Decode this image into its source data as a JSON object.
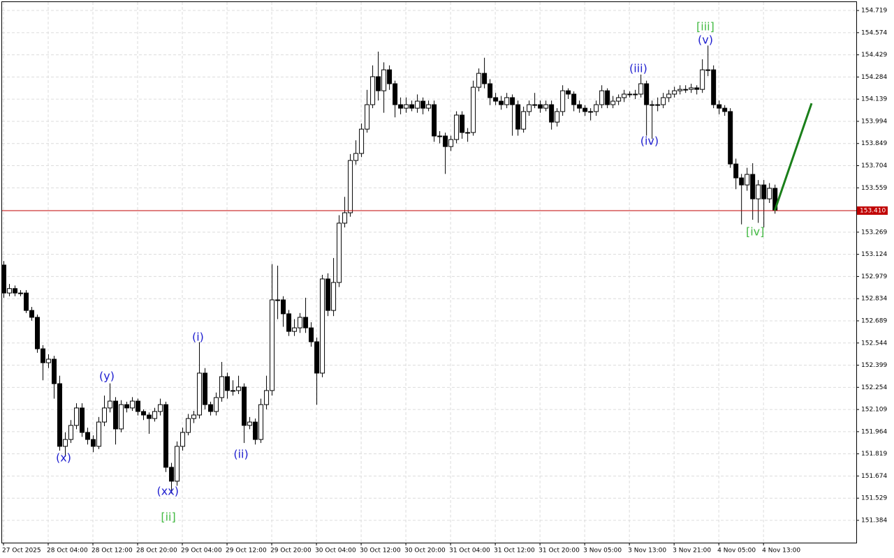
{
  "chart_data": {
    "type": "candlestick",
    "bull_color": "#ffffff",
    "bear_color": "#000000",
    "outline_color": "#000000",
    "ylim": [
      151.238,
      154.774
    ],
    "yticks": [
      154.719,
      154.574,
      154.429,
      154.284,
      154.139,
      153.994,
      153.849,
      153.704,
      153.559,
      153.269,
      153.124,
      152.979,
      152.834,
      152.689,
      152.544,
      152.399,
      152.254,
      152.109,
      151.964,
      151.819,
      151.674,
      151.529,
      151.384
    ],
    "xlim": [
      -0.25,
      152.6
    ],
    "xticks": [
      {
        "value": 0,
        "label": "27 Oct 2025"
      },
      {
        "value": 8,
        "label": "28 Oct 04:00"
      },
      {
        "value": 16,
        "label": "28 Oct 12:00"
      },
      {
        "value": 24,
        "label": "28 Oct 20:00"
      },
      {
        "value": 32,
        "label": "29 Oct 04:00"
      },
      {
        "value": 40,
        "label": "29 Oct 12:00"
      },
      {
        "value": 48,
        "label": "29 Oct 20:00"
      },
      {
        "value": 56,
        "label": "30 Oct 04:00"
      },
      {
        "value": 64,
        "label": "30 Oct 12:00"
      },
      {
        "value": 72,
        "label": "30 Oct 20:00"
      },
      {
        "value": 80,
        "label": "31 Oct 04:00"
      },
      {
        "value": 88,
        "label": "31 Oct 12:00"
      },
      {
        "value": 96,
        "label": "31 Oct 20:00"
      },
      {
        "value": 104,
        "label": "3 Nov 05:00"
      },
      {
        "value": 112,
        "label": "3 Nov 13:00"
      },
      {
        "value": 120,
        "label": "3 Nov 21:00"
      },
      {
        "value": 128,
        "label": "4 Nov 05:00"
      },
      {
        "value": 136,
        "label": "4 Nov 13:00"
      }
    ],
    "grid": true,
    "price_line": {
      "value": 153.41,
      "label": "153.410",
      "color": "#c00000"
    },
    "forecast": {
      "x": [
        138,
        144.6
      ],
      "y": [
        153.41,
        154.112
      ],
      "color": "#1a7f1a"
    },
    "annotations": [
      {
        "text": "(x)",
        "x": 10.75,
        "y": 151.79,
        "color": "#2020d0"
      },
      {
        "text": "(y)",
        "x": 18.5,
        "y": 152.324,
        "color": "#2020d0"
      },
      {
        "text": "(xx)",
        "x": 29.4,
        "y": 151.571,
        "color": "#2020d0"
      },
      {
        "text": "[ii]",
        "x": 29.5,
        "y": 151.402,
        "color": "#44bb44"
      },
      {
        "text": "(i)",
        "x": 34.8,
        "y": 152.579,
        "color": "#2020d0"
      },
      {
        "text": "(ii)",
        "x": 42.5,
        "y": 151.813,
        "color": "#2020d0"
      },
      {
        "text": "(iii)",
        "x": 113.6,
        "y": 154.336,
        "color": "#2020d0"
      },
      {
        "text": "(iv)",
        "x": 115.6,
        "y": 153.861,
        "color": "#2020d0"
      },
      {
        "text": "(v)",
        "x": 125.6,
        "y": 154.523,
        "color": "#2020d0"
      },
      {
        "text": "[iii]",
        "x": 125.6,
        "y": 154.61,
        "color": "#44bb44"
      },
      {
        "text": "[iv]",
        "x": 134.5,
        "y": 153.268,
        "color": "#44bb44"
      }
    ],
    "candles": [
      [
        153.054,
        153.08,
        152.84,
        152.871
      ],
      [
        152.871,
        152.93,
        152.85,
        152.9
      ],
      [
        152.9,
        152.92,
        152.85,
        152.871
      ],
      [
        152.871,
        152.89,
        152.85,
        152.871
      ],
      [
        152.871,
        152.89,
        152.74,
        152.757
      ],
      [
        152.757,
        152.78,
        152.69,
        152.712
      ],
      [
        152.712,
        152.73,
        152.48,
        152.506
      ],
      [
        152.506,
        152.53,
        152.3,
        152.415
      ],
      [
        152.415,
        152.47,
        152.38,
        152.438
      ],
      [
        152.438,
        152.46,
        152.18,
        152.278
      ],
      [
        152.278,
        152.33,
        151.84,
        151.868
      ],
      [
        151.868,
        151.96,
        151.8,
        151.913
      ],
      [
        151.913,
        152.04,
        151.89,
        152.005
      ],
      [
        152.005,
        152.15,
        151.98,
        152.119
      ],
      [
        152.119,
        152.15,
        151.93,
        151.959
      ],
      [
        151.959,
        151.99,
        151.88,
        151.913
      ],
      [
        151.913,
        151.94,
        151.83,
        151.868
      ],
      [
        151.868,
        152.06,
        151.85,
        152.027
      ],
      [
        152.027,
        152.2,
        152.0,
        152.119
      ],
      [
        152.119,
        152.28,
        152.09,
        152.164
      ],
      [
        152.164,
        152.19,
        151.88,
        151.982
      ],
      [
        151.982,
        152.17,
        151.96,
        152.141
      ],
      [
        152.141,
        152.16,
        152.09,
        152.119
      ],
      [
        152.119,
        152.19,
        152.1,
        152.164
      ],
      [
        152.164,
        152.18,
        152.07,
        152.096
      ],
      [
        152.096,
        152.11,
        152.04,
        152.073
      ],
      [
        152.073,
        152.09,
        151.95,
        152.05
      ],
      [
        152.05,
        152.12,
        152.03,
        152.096
      ],
      [
        152.096,
        152.18,
        152.07,
        152.141
      ],
      [
        152.141,
        152.16,
        151.7,
        151.731
      ],
      [
        151.731,
        151.76,
        151.56,
        151.64
      ],
      [
        151.64,
        151.9,
        151.61,
        151.868
      ],
      [
        151.868,
        151.99,
        151.84,
        151.959
      ],
      [
        151.959,
        152.08,
        151.94,
        152.05
      ],
      [
        152.05,
        152.1,
        152.02,
        152.073
      ],
      [
        152.073,
        152.55,
        152.05,
        152.347
      ],
      [
        152.347,
        152.38,
        152.11,
        152.141
      ],
      [
        152.141,
        152.16,
        152.07,
        152.096
      ],
      [
        152.096,
        152.22,
        152.07,
        152.187
      ],
      [
        152.187,
        152.42,
        152.16,
        152.324
      ],
      [
        152.324,
        152.35,
        152.18,
        152.233
      ],
      [
        152.233,
        152.3,
        152.2,
        152.233
      ],
      [
        152.233,
        152.33,
        152.21,
        152.256
      ],
      [
        152.256,
        152.28,
        151.89,
        152.005
      ],
      [
        152.005,
        152.06,
        151.98,
        152.027
      ],
      [
        152.027,
        152.05,
        151.88,
        151.913
      ],
      [
        151.913,
        152.18,
        151.89,
        152.141
      ],
      [
        152.141,
        152.33,
        152.11,
        152.233
      ],
      [
        152.233,
        153.06,
        152.2,
        152.826
      ],
      [
        152.826,
        153.05,
        152.7,
        152.826
      ],
      [
        152.826,
        152.85,
        152.65,
        152.735
      ],
      [
        152.735,
        152.76,
        152.59,
        152.62
      ],
      [
        152.62,
        152.7,
        152.59,
        152.643
      ],
      [
        152.643,
        152.74,
        152.61,
        152.712
      ],
      [
        152.712,
        152.84,
        152.61,
        152.643
      ],
      [
        152.643,
        152.68,
        152.52,
        152.552
      ],
      [
        152.552,
        152.58,
        152.14,
        152.347
      ],
      [
        152.347,
        152.99,
        152.32,
        152.963
      ],
      [
        152.963,
        153.0,
        152.72,
        152.757
      ],
      [
        152.757,
        153.1,
        152.72,
        152.94
      ],
      [
        152.94,
        153.38,
        152.91,
        153.328
      ],
      [
        153.328,
        153.5,
        153.3,
        153.396
      ],
      [
        153.396,
        153.78,
        153.37,
        153.738
      ],
      [
        153.738,
        153.87,
        153.71,
        153.784
      ],
      [
        153.784,
        153.98,
        153.76,
        153.943
      ],
      [
        153.943,
        154.2,
        153.92,
        154.103
      ],
      [
        154.103,
        154.36,
        154.08,
        154.286
      ],
      [
        154.286,
        154.45,
        154.13,
        154.194
      ],
      [
        154.194,
        154.38,
        154.05,
        154.331
      ],
      [
        154.331,
        154.36,
        154.2,
        154.24
      ],
      [
        154.24,
        154.26,
        154.02,
        154.103
      ],
      [
        154.103,
        154.15,
        154.04,
        154.08
      ],
      [
        154.08,
        154.15,
        154.05,
        154.103
      ],
      [
        154.103,
        154.13,
        154.06,
        154.08
      ],
      [
        154.08,
        154.17,
        154.05,
        154.126
      ],
      [
        154.126,
        154.15,
        154.04,
        154.08
      ],
      [
        154.08,
        154.13,
        154.06,
        154.103
      ],
      [
        154.103,
        154.13,
        153.86,
        153.898
      ],
      [
        153.898,
        153.93,
        153.85,
        153.898
      ],
      [
        153.898,
        153.92,
        153.65,
        153.829
      ],
      [
        153.829,
        153.9,
        153.8,
        153.875
      ],
      [
        153.875,
        154.06,
        153.85,
        154.035
      ],
      [
        154.035,
        154.06,
        153.88,
        153.921
      ],
      [
        153.921,
        153.95,
        153.86,
        153.921
      ],
      [
        153.921,
        154.26,
        153.9,
        154.217
      ],
      [
        154.217,
        154.34,
        154.19,
        154.308
      ],
      [
        154.308,
        154.41,
        154.21,
        154.24
      ],
      [
        154.24,
        154.27,
        154.1,
        154.149
      ],
      [
        154.149,
        154.18,
        154.1,
        154.126
      ],
      [
        154.126,
        154.16,
        154.07,
        154.103
      ],
      [
        154.103,
        154.18,
        154.08,
        154.149
      ],
      [
        154.149,
        154.17,
        153.9,
        154.103
      ],
      [
        154.103,
        154.13,
        153.9,
        153.943
      ],
      [
        153.943,
        154.09,
        153.92,
        154.058
      ],
      [
        154.058,
        154.13,
        154.03,
        154.103
      ],
      [
        154.103,
        154.18,
        154.08,
        154.103
      ],
      [
        154.103,
        154.13,
        154.05,
        154.08
      ],
      [
        154.08,
        154.13,
        154.06,
        154.103
      ],
      [
        154.103,
        154.13,
        153.94,
        153.989
      ],
      [
        153.989,
        154.08,
        153.96,
        154.058
      ],
      [
        154.058,
        154.23,
        154.03,
        154.194
      ],
      [
        154.194,
        154.21,
        154.14,
        154.172
      ],
      [
        154.172,
        154.19,
        154.06,
        154.103
      ],
      [
        154.103,
        154.13,
        154.05,
        154.08
      ],
      [
        154.08,
        154.1,
        154.03,
        154.058
      ],
      [
        154.058,
        154.08,
        154.0,
        154.058
      ],
      [
        154.058,
        154.13,
        154.03,
        154.103
      ],
      [
        154.103,
        154.23,
        154.08,
        154.194
      ],
      [
        154.194,
        154.21,
        154.08,
        154.103
      ],
      [
        154.103,
        154.16,
        154.08,
        154.126
      ],
      [
        154.126,
        154.17,
        154.1,
        154.149
      ],
      [
        154.149,
        154.2,
        154.12,
        154.172
      ],
      [
        154.172,
        154.19,
        154.15,
        154.172
      ],
      [
        154.172,
        154.2,
        154.14,
        154.172
      ],
      [
        154.172,
        154.3,
        154.15,
        154.24
      ],
      [
        154.24,
        154.26,
        153.9,
        154.103
      ],
      [
        154.103,
        154.13,
        153.88,
        154.103
      ],
      [
        154.103,
        154.15,
        154.06,
        154.103
      ],
      [
        154.103,
        154.18,
        154.08,
        154.149
      ],
      [
        154.149,
        154.2,
        154.12,
        154.172
      ],
      [
        154.172,
        154.22,
        154.15,
        154.194
      ],
      [
        154.194,
        154.23,
        154.17,
        154.203
      ],
      [
        154.203,
        154.23,
        154.18,
        154.203
      ],
      [
        154.203,
        154.24,
        154.18,
        154.213
      ],
      [
        154.213,
        154.23,
        154.17,
        154.203
      ],
      [
        154.203,
        154.4,
        154.18,
        154.331
      ],
      [
        154.331,
        154.49,
        154.29,
        154.331
      ],
      [
        154.331,
        154.36,
        154.08,
        154.103
      ],
      [
        154.103,
        154.13,
        154.04,
        154.08
      ],
      [
        154.08,
        154.1,
        154.03,
        154.058
      ],
      [
        154.058,
        154.08,
        153.69,
        153.715
      ],
      [
        153.715,
        153.75,
        153.55,
        153.624
      ],
      [
        153.624,
        153.65,
        153.32,
        153.578
      ],
      [
        153.578,
        153.69,
        153.54,
        153.647
      ],
      [
        153.647,
        153.72,
        153.35,
        153.487
      ],
      [
        153.487,
        153.61,
        153.33,
        153.578
      ],
      [
        153.578,
        153.61,
        153.3,
        153.487
      ],
      [
        153.487,
        153.59,
        153.46,
        153.556
      ],
      [
        153.556,
        153.58,
        153.39,
        153.41
      ]
    ]
  }
}
